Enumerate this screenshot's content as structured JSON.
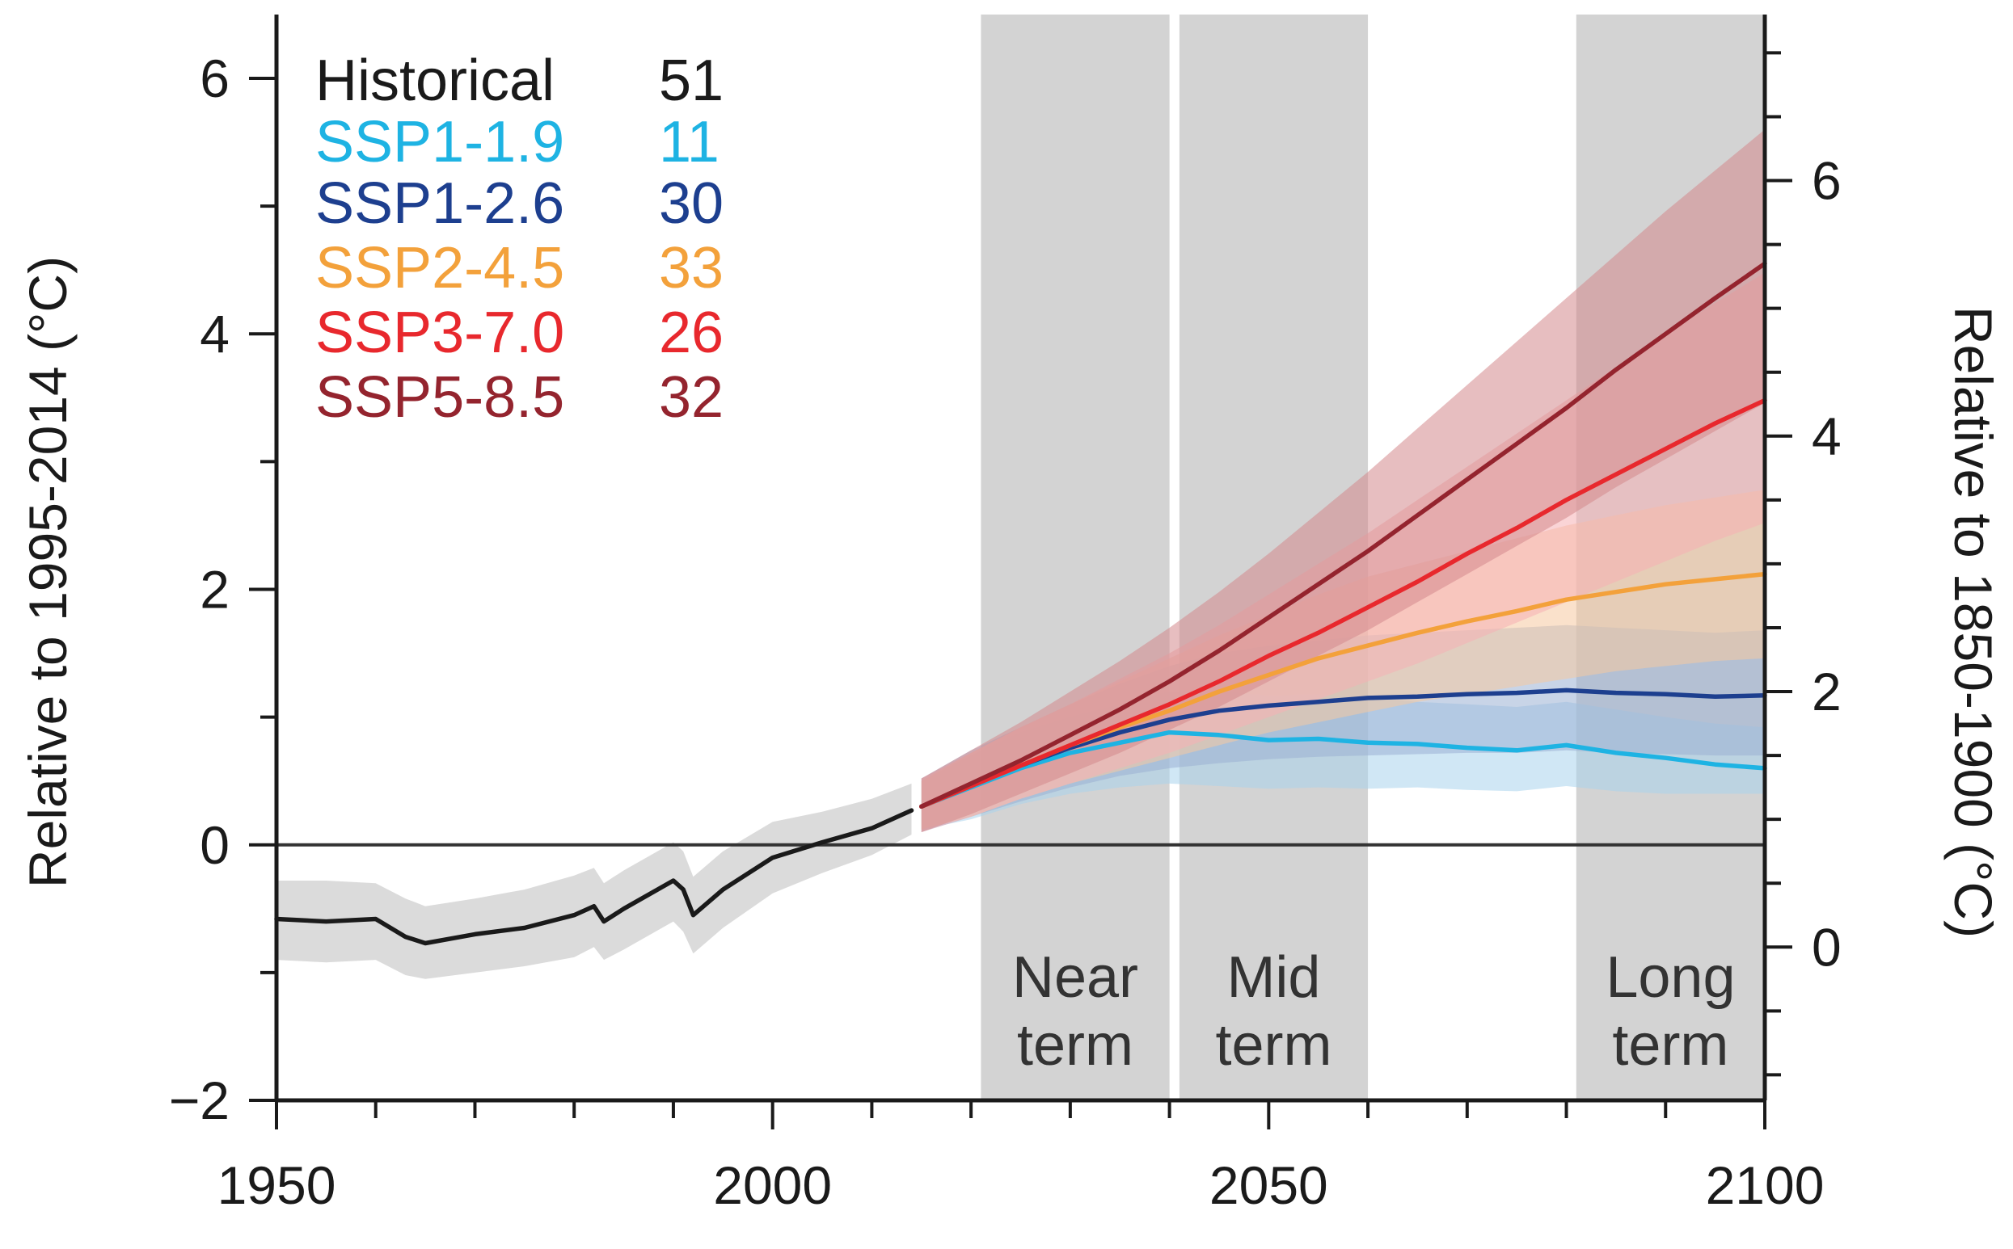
{
  "chart_data": {
    "type": "line",
    "title": "",
    "xlabel": "",
    "ylabel": "Relative to 1995-2014 (°C)",
    "y2label": "Relative to 1850-1900 (°C)",
    "xlim": [
      1950,
      2100
    ],
    "ylim": [
      -2,
      6.5
    ],
    "y2_offset": 0.8,
    "x_ticks": [
      1950,
      2000,
      2050,
      2100
    ],
    "x_tick_labels": [
      "1950",
      "2000",
      "2050",
      "2100"
    ],
    "y_ticks": [
      -2,
      0,
      2,
      4,
      6
    ],
    "y_tick_labels": [
      "−2",
      "0",
      "2",
      "4",
      "6"
    ],
    "y2_ticks": [
      0,
      2,
      4,
      6
    ],
    "y2_tick_labels": [
      "0",
      "2",
      "4",
      "6"
    ],
    "periods": [
      {
        "name": "near-term",
        "label_lines": [
          "Near",
          "term"
        ],
        "start": 2021,
        "end": 2040,
        "color": "#d3d3d3"
      },
      {
        "name": "mid-term",
        "label_lines": [
          "Mid",
          "term"
        ],
        "start": 2041,
        "end": 2060,
        "color": "#d3d3d3"
      },
      {
        "name": "long-term",
        "label_lines": [
          "Long",
          "term"
        ],
        "start": 2081,
        "end": 2100,
        "color": "#d3d3d3"
      }
    ],
    "legend_position": "top-left",
    "legend": [
      {
        "name": "Historical",
        "count": "51",
        "color": "#1a1a1a"
      },
      {
        "name": "SSP1-1.9",
        "count": "11",
        "color": "#1eb3e3"
      },
      {
        "name": "SSP1-2.6",
        "count": "30",
        "color": "#1d3f8f"
      },
      {
        "name": "SSP2-4.5",
        "count": "33",
        "color": "#f3a13b"
      },
      {
        "name": "SSP3-7.0",
        "count": "26",
        "color": "#e8282d"
      },
      {
        "name": "SSP5-8.5",
        "count": "32",
        "color": "#94242e"
      }
    ],
    "series": [
      {
        "name": "Historical",
        "color": "#1a1a1a",
        "band_color": "#bdbdbd",
        "x": [
          1950,
          1955,
          1960,
          1963,
          1965,
          1970,
          1975,
          1980,
          1982,
          1983,
          1985,
          1990,
          1991,
          1992,
          1995,
          2000,
          2005,
          2010,
          2014
        ],
        "values": [
          -0.58,
          -0.6,
          -0.58,
          -0.72,
          -0.77,
          -0.7,
          -0.65,
          -0.55,
          -0.48,
          -0.6,
          -0.5,
          -0.28,
          -0.35,
          -0.55,
          -0.35,
          -0.1,
          0.02,
          0.13,
          0.27
        ],
        "lower": [
          -0.9,
          -0.92,
          -0.9,
          -1.02,
          -1.05,
          -1.0,
          -0.95,
          -0.88,
          -0.8,
          -0.9,
          -0.82,
          -0.6,
          -0.68,
          -0.85,
          -0.65,
          -0.38,
          -0.22,
          -0.08,
          0.08
        ],
        "upper": [
          -0.28,
          -0.28,
          -0.3,
          -0.42,
          -0.48,
          -0.42,
          -0.35,
          -0.24,
          -0.18,
          -0.3,
          -0.2,
          0.02,
          -0.05,
          -0.25,
          -0.05,
          0.18,
          0.26,
          0.36,
          0.48
        ]
      },
      {
        "name": "SSP1-1.9",
        "color": "#1eb3e3",
        "band_color": "#a9d4ec",
        "x": [
          2015,
          2020,
          2025,
          2030,
          2035,
          2040,
          2045,
          2050,
          2055,
          2060,
          2065,
          2070,
          2075,
          2080,
          2085,
          2090,
          2095,
          2100
        ],
        "values": [
          0.3,
          0.45,
          0.6,
          0.72,
          0.8,
          0.88,
          0.86,
          0.82,
          0.83,
          0.8,
          0.79,
          0.76,
          0.74,
          0.78,
          0.72,
          0.68,
          0.63,
          0.6
        ],
        "lower": [
          0.12,
          0.2,
          0.32,
          0.4,
          0.45,
          0.48,
          0.46,
          0.44,
          0.45,
          0.44,
          0.45,
          0.43,
          0.42,
          0.46,
          0.42,
          0.4,
          0.4,
          0.4
        ],
        "upper": [
          0.5,
          0.7,
          0.88,
          1.0,
          1.1,
          1.2,
          1.2,
          1.17,
          1.18,
          1.15,
          1.12,
          1.1,
          1.08,
          1.12,
          1.06,
          1.0,
          0.95,
          0.92
        ]
      },
      {
        "name": "SSP1-2.6",
        "color": "#1d3f8f",
        "band_color": "#9ab1d3",
        "x": [
          2015,
          2020,
          2025,
          2030,
          2035,
          2040,
          2045,
          2050,
          2055,
          2060,
          2065,
          2070,
          2075,
          2080,
          2085,
          2090,
          2095,
          2100
        ],
        "values": [
          0.3,
          0.47,
          0.62,
          0.76,
          0.88,
          0.98,
          1.05,
          1.09,
          1.12,
          1.15,
          1.16,
          1.18,
          1.19,
          1.21,
          1.19,
          1.18,
          1.16,
          1.17
        ],
        "lower": [
          0.1,
          0.22,
          0.34,
          0.45,
          0.54,
          0.6,
          0.64,
          0.67,
          0.69,
          0.7,
          0.71,
          0.72,
          0.72,
          0.74,
          0.72,
          0.71,
          0.7,
          0.7
        ],
        "upper": [
          0.52,
          0.74,
          0.92,
          1.1,
          1.26,
          1.4,
          1.5,
          1.56,
          1.6,
          1.64,
          1.66,
          1.68,
          1.7,
          1.72,
          1.7,
          1.68,
          1.66,
          1.68
        ]
      },
      {
        "name": "SSP2-4.5",
        "color": "#f3a13b",
        "band_color": "#f6c9a1",
        "x": [
          2015,
          2020,
          2025,
          2030,
          2035,
          2040,
          2045,
          2050,
          2055,
          2060,
          2065,
          2070,
          2075,
          2080,
          2085,
          2090,
          2095,
          2100
        ],
        "values": [
          0.3,
          0.46,
          0.62,
          0.78,
          0.92,
          1.05,
          1.2,
          1.33,
          1.46,
          1.56,
          1.66,
          1.75,
          1.83,
          1.92,
          1.98,
          2.04,
          2.08,
          2.12
        ],
        "lower": [
          0.12,
          0.22,
          0.36,
          0.48,
          0.58,
          0.68,
          0.78,
          0.88,
          0.96,
          1.04,
          1.12,
          1.18,
          1.24,
          1.3,
          1.36,
          1.4,
          1.44,
          1.46
        ],
        "upper": [
          0.5,
          0.72,
          0.92,
          1.1,
          1.28,
          1.46,
          1.64,
          1.8,
          1.96,
          2.1,
          2.2,
          2.3,
          2.4,
          2.5,
          2.58,
          2.66,
          2.72,
          2.78
        ]
      },
      {
        "name": "SSP3-7.0",
        "color": "#e8282d",
        "band_color": "#f6b1b5",
        "x": [
          2015,
          2020,
          2025,
          2030,
          2035,
          2040,
          2045,
          2050,
          2055,
          2060,
          2065,
          2070,
          2075,
          2080,
          2085,
          2090,
          2095,
          2100
        ],
        "values": [
          0.3,
          0.46,
          0.62,
          0.78,
          0.94,
          1.1,
          1.28,
          1.48,
          1.66,
          1.86,
          2.06,
          2.28,
          2.48,
          2.7,
          2.9,
          3.1,
          3.3,
          3.48
        ],
        "lower": [
          0.1,
          0.22,
          0.36,
          0.48,
          0.6,
          0.72,
          0.86,
          1.0,
          1.14,
          1.28,
          1.42,
          1.58,
          1.74,
          1.9,
          2.06,
          2.22,
          2.38,
          2.52
        ],
        "upper": [
          0.52,
          0.72,
          0.92,
          1.1,
          1.3,
          1.5,
          1.72,
          1.96,
          2.2,
          2.44,
          2.7,
          2.96,
          3.22,
          3.48,
          3.74,
          4.0,
          4.24,
          4.48
        ]
      },
      {
        "name": "SSP5-8.5",
        "color": "#94242e",
        "band_color": "#d4888c",
        "x": [
          2015,
          2020,
          2025,
          2030,
          2035,
          2040,
          2045,
          2050,
          2055,
          2060,
          2065,
          2070,
          2075,
          2080,
          2085,
          2090,
          2095,
          2100
        ],
        "values": [
          0.3,
          0.48,
          0.66,
          0.86,
          1.06,
          1.28,
          1.52,
          1.78,
          2.04,
          2.3,
          2.58,
          2.86,
          3.14,
          3.42,
          3.72,
          4.0,
          4.28,
          4.55
        ],
        "lower": [
          0.1,
          0.24,
          0.4,
          0.56,
          0.72,
          0.9,
          1.08,
          1.28,
          1.48,
          1.68,
          1.9,
          2.12,
          2.34,
          2.56,
          2.8,
          3.02,
          3.24,
          3.46
        ],
        "upper": [
          0.52,
          0.74,
          0.96,
          1.2,
          1.44,
          1.7,
          1.98,
          2.28,
          2.6,
          2.92,
          3.26,
          3.6,
          3.94,
          4.28,
          4.62,
          4.96,
          5.28,
          5.6
        ]
      }
    ]
  }
}
